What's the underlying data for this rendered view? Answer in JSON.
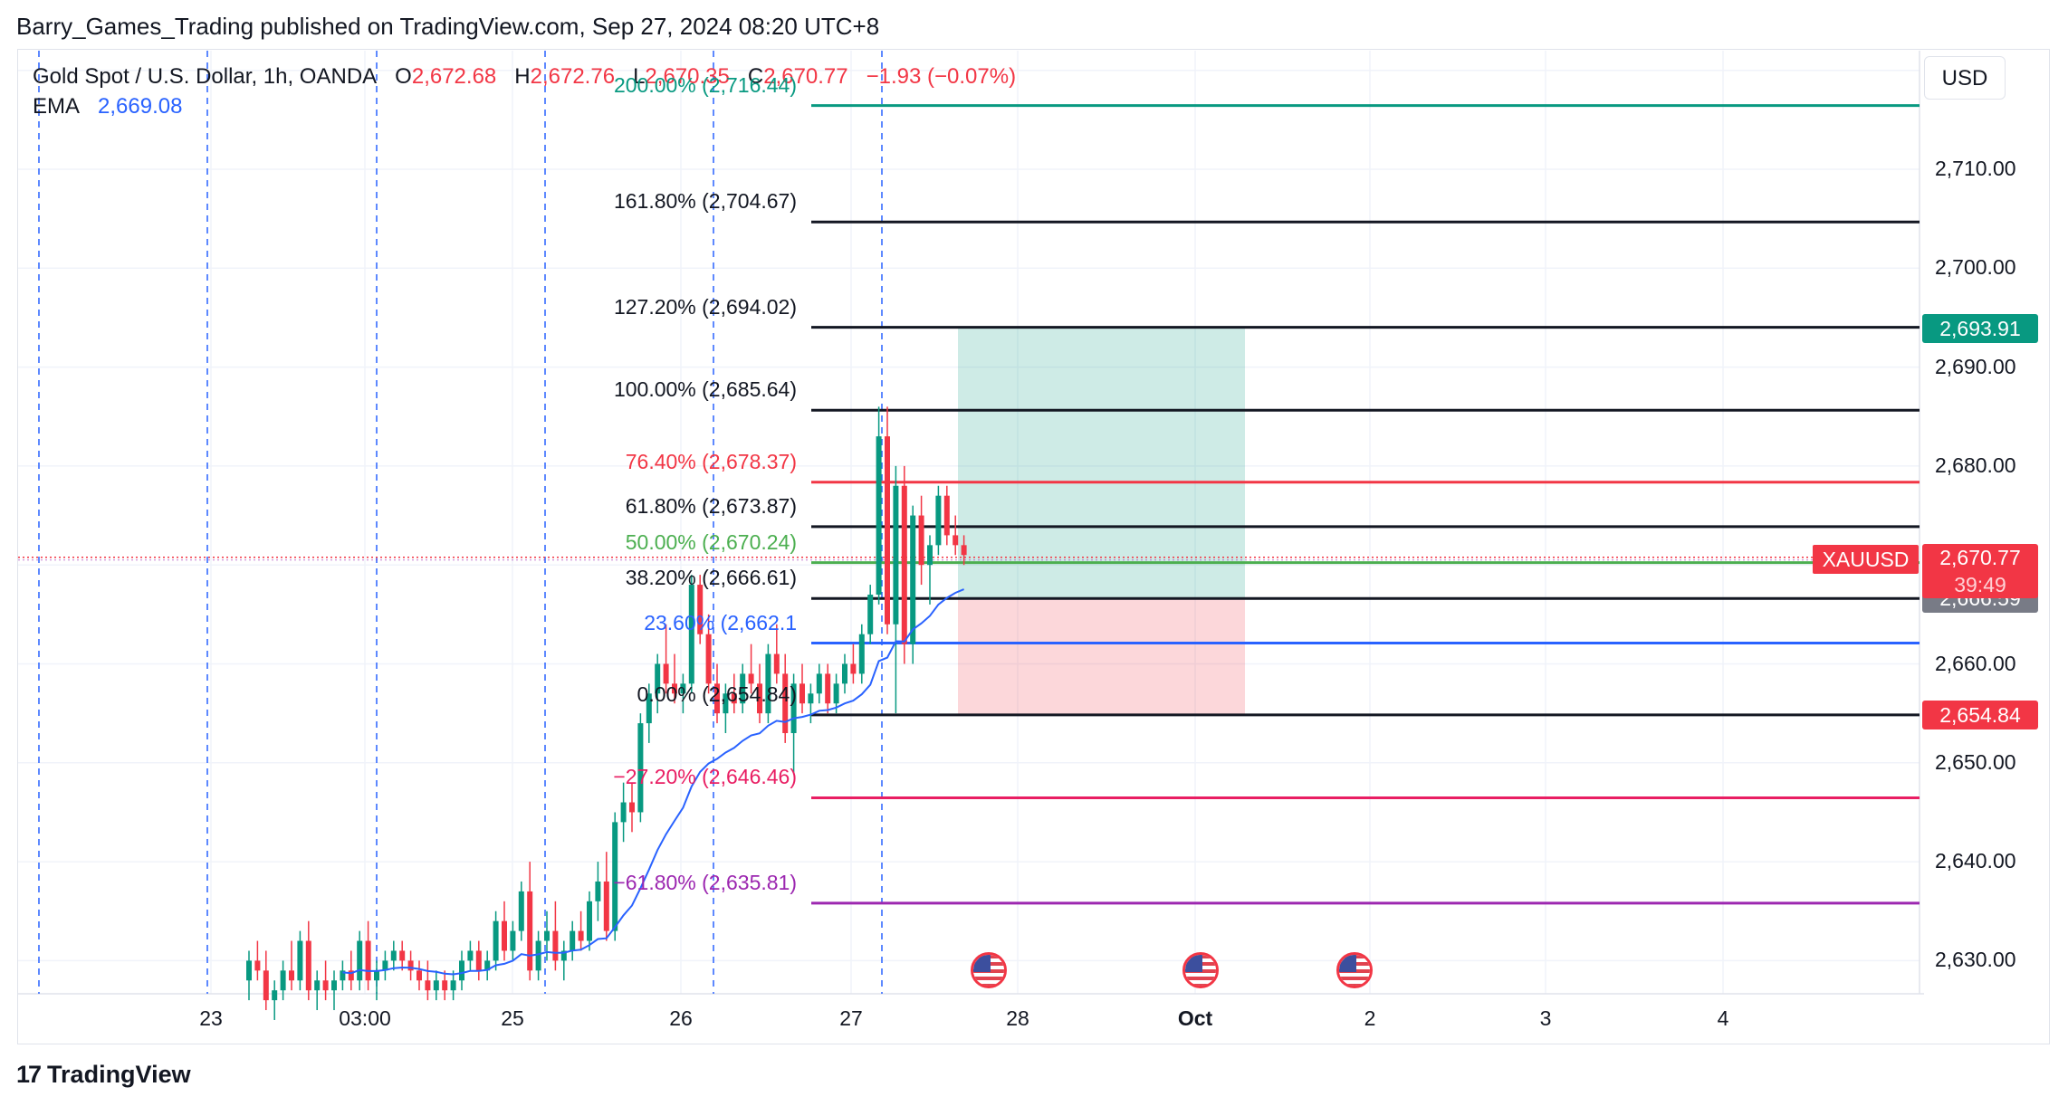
{
  "header": {
    "text": "Barry_Games_Trading published on TradingView.com, Sep 27, 2024 08:20 UTC+8"
  },
  "legend": {
    "symbol": "Gold Spot / U.S. Dollar, 1h, OANDA",
    "o_label": "O",
    "o_value": "2,672.68",
    "h_label": "H",
    "h_value": "2,672.76",
    "l_label": "L",
    "l_value": "2,670.35",
    "c_label": "C",
    "c_value": "2,670.77",
    "change": "−1.93 (−0.07%)",
    "ema_label": "EMA",
    "ema_value": "2,669.08"
  },
  "currency_button": "USD",
  "colors": {
    "up": "#089981",
    "down": "#f23645",
    "ema": "#2962ff",
    "session_lines": "#2962ff"
  },
  "chart_data": {
    "type": "candlestick",
    "symbol_badge": "XAUUSD",
    "last_price": "2,670.77",
    "countdown": "39:49",
    "y_ticks": [
      "2,710.00",
      "2,700.00",
      "2,690.00",
      "2,680.00",
      "2,670.00",
      "2,660.00",
      "2,650.00",
      "2,640.00",
      "2,630.00"
    ],
    "x_ticks": [
      "23",
      "03:00",
      "25",
      "26",
      "27",
      "28",
      "Oct",
      "2",
      "3",
      "4"
    ],
    "fib_levels": [
      {
        "label": "200.00% (2,716.44)",
        "price": 2716.44,
        "color": "#089981"
      },
      {
        "label": "161.80% (2,704.67)",
        "price": 2704.67,
        "color": "#131722"
      },
      {
        "label": "127.20% (2,694.02)",
        "price": 2694.02,
        "color": "#131722"
      },
      {
        "label": "100.00% (2,685.64)",
        "price": 2685.64,
        "color": "#131722"
      },
      {
        "label": "76.40% (2,678.37)",
        "price": 2678.37,
        "color": "#f23645"
      },
      {
        "label": "61.80% (2,673.87)",
        "price": 2673.87,
        "color": "#131722"
      },
      {
        "label": "50.00% (2,670.24)",
        "price": 2670.24,
        "color": "#4caf50"
      },
      {
        "label": "38.20% (2,666.61)",
        "price": 2666.61,
        "color": "#131722"
      },
      {
        "label": "23.60% (2,662.1",
        "price": 2662.1,
        "color": "#2962ff"
      },
      {
        "label": "0.00% (2,654.84)",
        "price": 2654.84,
        "color": "#131722"
      },
      {
        "label": "−27.20% (2,646.46)",
        "price": 2646.46,
        "color": "#e91e63"
      },
      {
        "label": "−61.80% (2,635.81)",
        "price": 2635.81,
        "color": "#9c27b0"
      }
    ],
    "price_badges": [
      {
        "text": "2,693.91",
        "price": 2693.91,
        "color": "#089981"
      },
      {
        "text": "2,666.59",
        "price": 2666.59,
        "color": "#787b86"
      },
      {
        "text": "2,654.84",
        "price": 2654.84,
        "color": "#f23645"
      }
    ],
    "position": {
      "entry": 2666.59,
      "target": 2693.91,
      "stop": 2654.84
    },
    "candles": [
      [
        2628,
        2631,
        2626,
        2630
      ],
      [
        2630,
        2632,
        2628,
        2629
      ],
      [
        2629,
        2631,
        2625,
        2626
      ],
      [
        2626,
        2628,
        2624,
        2627
      ],
      [
        2627,
        2630,
        2626,
        2629
      ],
      [
        2629,
        2632,
        2627,
        2628
      ],
      [
        2628,
        2633,
        2627,
        2632
      ],
      [
        2632,
        2634,
        2626,
        2627
      ],
      [
        2627,
        2629,
        2625,
        2628
      ],
      [
        2628,
        2630,
        2626,
        2627
      ],
      [
        2627,
        2629,
        2625,
        2628
      ],
      [
        2628,
        2630,
        2627,
        2629
      ],
      [
        2629,
        2631,
        2627,
        2628
      ],
      [
        2628,
        2633,
        2627,
        2632
      ],
      [
        2632,
        2634,
        2627,
        2628
      ],
      [
        2628,
        2630,
        2626,
        2629
      ],
      [
        2629,
        2631,
        2628,
        2630
      ],
      [
        2630,
        2632,
        2629,
        2631
      ],
      [
        2631,
        2632,
        2629,
        2630
      ],
      [
        2630,
        2631,
        2628,
        2629
      ],
      [
        2629,
        2630,
        2627,
        2628
      ],
      [
        2628,
        2630,
        2626,
        2627
      ],
      [
        2627,
        2629,
        2626,
        2628
      ],
      [
        2628,
        2629,
        2626,
        2627
      ],
      [
        2627,
        2629,
        2626,
        2628
      ],
      [
        2628,
        2631,
        2627,
        2630
      ],
      [
        2630,
        2632,
        2629,
        2631
      ],
      [
        2631,
        2632,
        2628,
        2629
      ],
      [
        2629,
        2631,
        2628,
        2630
      ],
      [
        2630,
        2635,
        2629,
        2634
      ],
      [
        2634,
        2636,
        2630,
        2631
      ],
      [
        2631,
        2634,
        2630,
        2633
      ],
      [
        2633,
        2638,
        2632,
        2637
      ],
      [
        2637,
        2640,
        2628,
        2629
      ],
      [
        2629,
        2633,
        2628,
        2632
      ],
      [
        2632,
        2635,
        2630,
        2633
      ],
      [
        2633,
        2636,
        2629,
        2630
      ],
      [
        2630,
        2632,
        2628,
        2631
      ],
      [
        2631,
        2634,
        2630,
        2633
      ],
      [
        2633,
        2635,
        2631,
        2632
      ],
      [
        2632,
        2637,
        2631,
        2636
      ],
      [
        2636,
        2640,
        2634,
        2638
      ],
      [
        2638,
        2641,
        2632,
        2633
      ],
      [
        2633,
        2645,
        2632,
        2644
      ],
      [
        2644,
        2648,
        2642,
        2646
      ],
      [
        2646,
        2648,
        2643,
        2645
      ],
      [
        2645,
        2655,
        2644,
        2654
      ],
      [
        2654,
        2658,
        2652,
        2657
      ],
      [
        2657,
        2661,
        2655,
        2660
      ],
      [
        2660,
        2664,
        2657,
        2658
      ],
      [
        2658,
        2661,
        2656,
        2657
      ],
      [
        2657,
        2659,
        2655,
        2658
      ],
      [
        2658,
        2669,
        2657,
        2668
      ],
      [
        2668,
        2669,
        2662,
        2663
      ],
      [
        2663,
        2665,
        2657,
        2658
      ],
      [
        2658,
        2660,
        2654,
        2655
      ],
      [
        2655,
        2658,
        2653,
        2657
      ],
      [
        2657,
        2659,
        2655,
        2656
      ],
      [
        2656,
        2660,
        2655,
        2659
      ],
      [
        2659,
        2662,
        2657,
        2658
      ],
      [
        2658,
        2660,
        2654,
        2655
      ],
      [
        2655,
        2662,
        2654,
        2661
      ],
      [
        2661,
        2664,
        2658,
        2659
      ],
      [
        2659,
        2661,
        2652,
        2653
      ],
      [
        2653,
        2659,
        2649,
        2658
      ],
      [
        2658,
        2660,
        2655,
        2656
      ],
      [
        2656,
        2658,
        2654,
        2657
      ],
      [
        2657,
        2660,
        2656,
        2659
      ],
      [
        2659,
        2660,
        2655,
        2656
      ],
      [
        2656,
        2659,
        2655,
        2658
      ],
      [
        2658,
        2661,
        2657,
        2660
      ],
      [
        2660,
        2662,
        2658,
        2659
      ],
      [
        2659,
        2664,
        2658,
        2663
      ],
      [
        2663,
        2668,
        2662,
        2667
      ],
      [
        2667,
        2686,
        2666,
        2683
      ],
      [
        2683,
        2686,
        2663,
        2664
      ],
      [
        2664,
        2680,
        2655,
        2678
      ],
      [
        2678,
        2680,
        2660,
        2662
      ],
      [
        2662,
        2676,
        2660,
        2675
      ],
      [
        2675,
        2677,
        2668,
        2670
      ],
      [
        2670,
        2673,
        2666,
        2672
      ],
      [
        2672,
        2678,
        2671,
        2677
      ],
      [
        2677,
        2678,
        2672,
        2673
      ],
      [
        2673,
        2675,
        2671,
        2672
      ],
      [
        2672,
        2673,
        2670,
        2671
      ]
    ]
  },
  "watermark": "TradingView"
}
